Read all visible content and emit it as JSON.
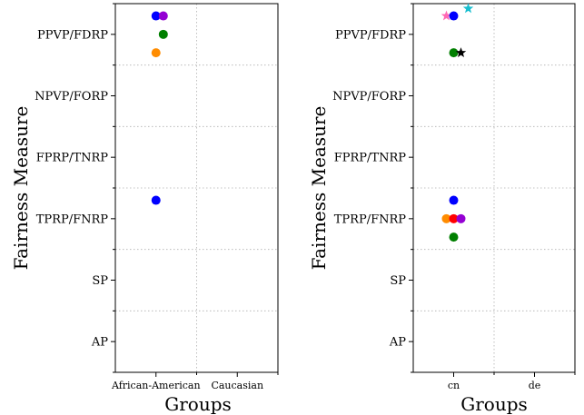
{
  "chart_data": [
    {
      "type": "scatter",
      "xlabel": "Groups",
      "ylabel": "Fairness Measure",
      "x_categories": [
        "African-American",
        "Caucasian"
      ],
      "y_categories": [
        "AP",
        "SP",
        "TPRP/FNRP",
        "FPRP/TNRP",
        "NPVP/FORP",
        "PPVP/FDRP"
      ],
      "grid": true,
      "points": [
        {
          "x": "African-American",
          "x_offset": 0,
          "y": "PPVP/FDRP",
          "y_offset": 0.3,
          "color": "#0000ff",
          "marker": "circle"
        },
        {
          "x": "African-American",
          "x_offset": 0.2,
          "y": "PPVP/FDRP",
          "y_offset": 0.3,
          "color": "#9400d3",
          "marker": "circle"
        },
        {
          "x": "African-American",
          "x_offset": 0.2,
          "y": "PPVP/FDRP",
          "y_offset": 0.0,
          "color": "#007f00",
          "marker": "circle"
        },
        {
          "x": "African-American",
          "x_offset": 0,
          "y": "PPVP/FDRP",
          "y_offset": -0.3,
          "color": "#ff8c00",
          "marker": "circle"
        },
        {
          "x": "African-American",
          "x_offset": 0,
          "y": "TPRP/FNRP",
          "y_offset": 0.3,
          "color": "#0000ff",
          "marker": "circle"
        }
      ]
    },
    {
      "type": "scatter",
      "xlabel": "Groups",
      "ylabel": "Fairness Measure",
      "x_categories": [
        "cn",
        "de"
      ],
      "y_categories": [
        "AP",
        "SP",
        "TPRP/FNRP",
        "FPRP/TNRP",
        "NPVP/FORP",
        "PPVP/FDRP"
      ],
      "grid": true,
      "points": [
        {
          "x": "cn",
          "x_offset": -0.2,
          "y": "PPVP/FDRP",
          "y_offset": 0.3,
          "color": "#ff69b4",
          "marker": "star"
        },
        {
          "x": "cn",
          "x_offset": 0,
          "y": "PPVP/FDRP",
          "y_offset": 0.3,
          "color": "#0000ff",
          "marker": "circle"
        },
        {
          "x": "cn",
          "x_offset": 0.4,
          "y": "PPVP/FDRP",
          "y_offset": 0.42,
          "color": "#17becf",
          "marker": "star"
        },
        {
          "x": "cn",
          "x_offset": 0,
          "y": "PPVP/FDRP",
          "y_offset": -0.3,
          "color": "#007f00",
          "marker": "circle"
        },
        {
          "x": "cn",
          "x_offset": 0.2,
          "y": "PPVP/FDRP",
          "y_offset": -0.3,
          "color": "#000000",
          "marker": "star"
        },
        {
          "x": "cn",
          "x_offset": 0,
          "y": "TPRP/FNRP",
          "y_offset": 0.3,
          "color": "#0000ff",
          "marker": "circle"
        },
        {
          "x": "cn",
          "x_offset": -0.2,
          "y": "TPRP/FNRP",
          "y_offset": 0.0,
          "color": "#ff8c00",
          "marker": "circle"
        },
        {
          "x": "cn",
          "x_offset": 0,
          "y": "TPRP/FNRP",
          "y_offset": 0.0,
          "color": "#ff0000",
          "marker": "circle"
        },
        {
          "x": "cn",
          "x_offset": 0.2,
          "y": "TPRP/FNRP",
          "y_offset": 0.0,
          "color": "#9400d3",
          "marker": "circle"
        },
        {
          "x": "cn",
          "x_offset": 0,
          "y": "TPRP/FNRP",
          "y_offset": -0.3,
          "color": "#007f00",
          "marker": "circle"
        }
      ]
    }
  ]
}
